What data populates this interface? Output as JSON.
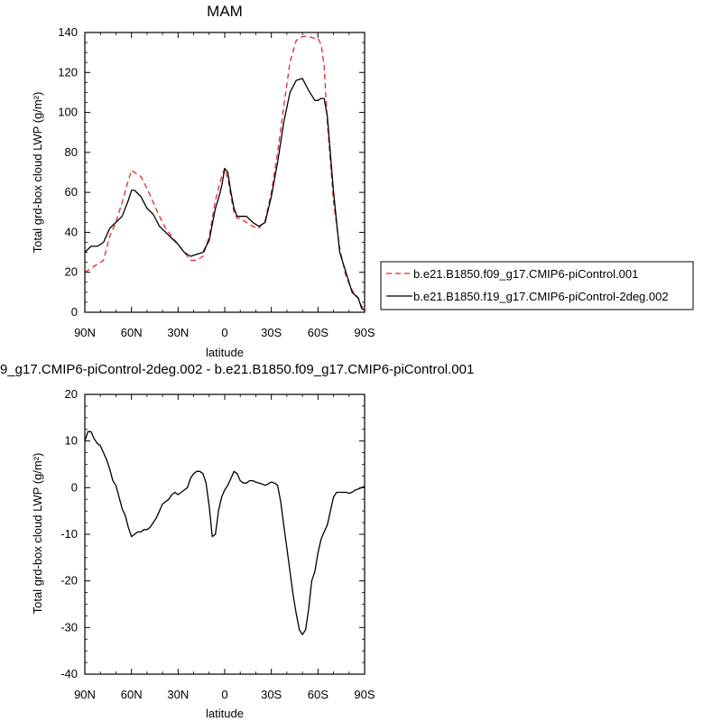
{
  "chart_data": [
    {
      "type": "line",
      "title": "MAM",
      "xlabel": "latitude",
      "ylabel": "Total grd-box cloud LWP (g/m²)",
      "xlim": [
        90,
        -90
      ],
      "ylim": [
        0,
        140
      ],
      "x_ticks": [
        {
          "value": 90,
          "label": "90N"
        },
        {
          "value": 60,
          "label": "60N"
        },
        {
          "value": 30,
          "label": "30N"
        },
        {
          "value": 0,
          "label": "0"
        },
        {
          "value": -30,
          "label": "30S"
        },
        {
          "value": -60,
          "label": "60S"
        },
        {
          "value": -90,
          "label": "90S"
        }
      ],
      "y_ticks": [
        0,
        20,
        40,
        60,
        80,
        100,
        120,
        140
      ],
      "legend_position": "right",
      "series": [
        {
          "name": "b.e21.B1850.f09_g17.CMIP6-piControl.001",
          "color": "#e8262b",
          "dash": "dashed",
          "x": [
            90,
            86,
            82,
            78,
            74,
            70,
            66,
            62,
            60,
            58,
            54,
            50,
            46,
            42,
            38,
            34,
            30,
            26,
            22,
            18,
            14,
            10,
            6,
            4,
            2,
            0,
            -2,
            -4,
            -6,
            -8,
            -10,
            -14,
            -18,
            -22,
            -26,
            -30,
            -34,
            -38,
            -42,
            -46,
            -50,
            -54,
            -58,
            -60,
            -62,
            -64,
            -66,
            -70,
            -74,
            -78,
            -82,
            -86,
            -88,
            -90
          ],
          "y": [
            20,
            22,
            24,
            26,
            38,
            45,
            55,
            66,
            71,
            70,
            68,
            62,
            55,
            48,
            42,
            38,
            34,
            30,
            26,
            26,
            28,
            38,
            56,
            62,
            68,
            72,
            67,
            58,
            50,
            47,
            47,
            45,
            43,
            42,
            46,
            60,
            80,
            103,
            125,
            136,
            138,
            138,
            137,
            137,
            134,
            123,
            95,
            55,
            32,
            18,
            11,
            7,
            3,
            2
          ]
        },
        {
          "name": "b.e21.B1850.f19_g17.CMIP6-piControl-2deg.002",
          "color": "#000000",
          "dash": "solid",
          "x": [
            90,
            86,
            82,
            78,
            74,
            70,
            66,
            62,
            60,
            58,
            54,
            50,
            46,
            42,
            38,
            34,
            30,
            26,
            22,
            18,
            14,
            10,
            6,
            4,
            2,
            0,
            -2,
            -4,
            -6,
            -8,
            -10,
            -14,
            -18,
            -22,
            -26,
            -30,
            -34,
            -38,
            -42,
            -46,
            -50,
            -54,
            -58,
            -60,
            -62,
            -64,
            -66,
            -70,
            -74,
            -78,
            -82,
            -86,
            -88,
            -90
          ],
          "y": [
            30,
            33,
            33,
            35,
            42,
            45,
            48,
            56,
            61,
            61,
            58,
            52,
            49,
            43,
            40,
            37,
            34,
            30,
            28,
            29,
            30,
            36,
            52,
            57,
            63,
            72,
            70,
            60,
            52,
            48,
            48,
            48,
            45,
            43,
            45,
            58,
            75,
            95,
            110,
            116,
            117,
            111,
            106,
            106,
            107,
            107,
            98,
            60,
            30,
            20,
            10,
            7,
            2,
            1
          ]
        }
      ]
    },
    {
      "type": "line",
      "title": "9_g17.CMIP6-piControl-2deg.002 - b.e21.B1850.f09_g17.CMIP6-piControl.001",
      "xlabel": "latitude",
      "ylabel": "Total grd-box cloud LWP (g/m²)",
      "xlim": [
        90,
        -90
      ],
      "ylim": [
        -40,
        20
      ],
      "x_ticks": [
        {
          "value": 90,
          "label": "90N"
        },
        {
          "value": 60,
          "label": "60N"
        },
        {
          "value": 30,
          "label": "30N"
        },
        {
          "value": 0,
          "label": "0"
        },
        {
          "value": -30,
          "label": "30S"
        },
        {
          "value": -60,
          "label": "60S"
        },
        {
          "value": -90,
          "label": "90S"
        }
      ],
      "y_ticks": [
        -40,
        -30,
        -20,
        -10,
        0,
        10,
        20
      ],
      "series": [
        {
          "color": "#000000",
          "dash": "solid",
          "x": [
            90,
            88,
            86,
            84,
            82,
            80,
            78,
            76,
            74,
            72,
            70,
            68,
            66,
            64,
            62,
            60,
            58,
            56,
            54,
            52,
            50,
            48,
            46,
            44,
            42,
            40,
            38,
            36,
            34,
            32,
            30,
            28,
            26,
            24,
            22,
            20,
            18,
            16,
            14,
            12,
            10,
            8,
            6,
            4,
            2,
            0,
            -2,
            -4,
            -6,
            -8,
            -10,
            -12,
            -14,
            -16,
            -18,
            -20,
            -22,
            -24,
            -26,
            -28,
            -30,
            -32,
            -34,
            -36,
            -38,
            -40,
            -42,
            -44,
            -46,
            -48,
            -50,
            -52,
            -54,
            -56,
            -58,
            -60,
            -62,
            -64,
            -66,
            -68,
            -70,
            -72,
            -74,
            -76,
            -78,
            -80,
            -82,
            -84,
            -86,
            -88,
            -90
          ],
          "y": [
            10,
            12,
            12,
            10.5,
            9.5,
            9,
            7.5,
            6,
            4,
            1.5,
            0.5,
            -2,
            -4.5,
            -6,
            -8.5,
            -10.5,
            -10,
            -9.5,
            -9.5,
            -9,
            -9,
            -8.5,
            -7.5,
            -6.5,
            -5,
            -3.5,
            -3,
            -2.5,
            -1.5,
            -1,
            -1.5,
            -1,
            -0.5,
            0,
            2,
            3,
            3.5,
            3.5,
            3,
            1,
            -4,
            -10.5,
            -10,
            -5,
            -2,
            -0.5,
            0.5,
            2,
            3.5,
            3,
            1.5,
            1,
            1,
            1.5,
            1.5,
            1.2,
            1,
            0.8,
            0.5,
            0.8,
            1.2,
            1,
            0.5,
            -3,
            -8,
            -13,
            -18,
            -23,
            -27,
            -30.5,
            -31.5,
            -30.5,
            -26,
            -20,
            -18,
            -14,
            -11,
            -9.5,
            -8,
            -5,
            -2,
            -1,
            -1,
            -1,
            -1,
            -1.2,
            -1,
            -0.5,
            -0.3,
            0,
            0.3
          ]
        }
      ]
    }
  ]
}
